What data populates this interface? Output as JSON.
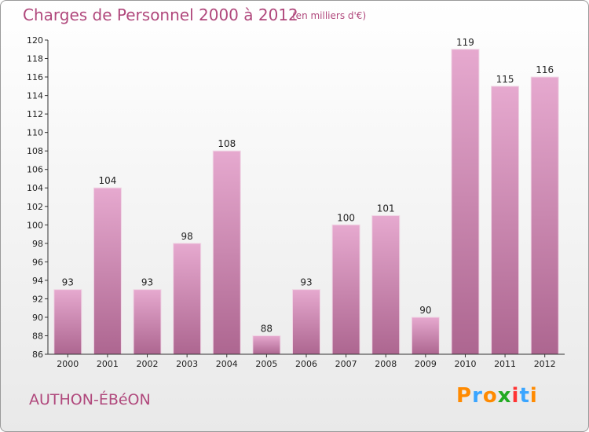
{
  "header": {
    "title": "Charges de Personnel 2000 à 2012",
    "subtitle": "(en milliers d'€)"
  },
  "footer": {
    "commune": "AUTHON-ÉBéON",
    "logo": "Proxiti"
  },
  "colors": {
    "accent": "#b0487c",
    "bar_top": "#e6a9cf",
    "bar_bottom": "#ad6690",
    "logo_letters": [
      "#ff8a00",
      "#3aa5ff",
      "#ff8a00",
      "#22aa22",
      "#ff3333",
      "#3aa5ff",
      "#ff8a00"
    ]
  },
  "chart_data": {
    "type": "bar",
    "title": "Charges de Personnel 2000 à 2012",
    "subtitle": "(en milliers d'€)",
    "categories": [
      "2000",
      "2001",
      "2002",
      "2003",
      "2004",
      "2005",
      "2006",
      "2007",
      "2008",
      "2009",
      "2010",
      "2011",
      "2012"
    ],
    "values": [
      93,
      104,
      93,
      98,
      108,
      88,
      93,
      100,
      101,
      90,
      119,
      115,
      116
    ],
    "ylim": [
      86,
      120
    ],
    "yticks": [
      86,
      88,
      90,
      92,
      94,
      96,
      98,
      100,
      102,
      104,
      106,
      108,
      110,
      112,
      114,
      116,
      118,
      120
    ],
    "grid": false,
    "xlabel": "",
    "ylabel": ""
  }
}
